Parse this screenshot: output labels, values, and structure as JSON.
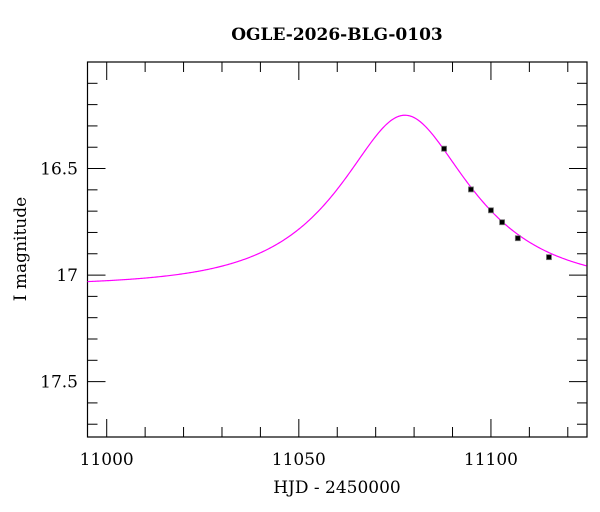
{
  "chart_data": {
    "type": "scatter",
    "title": "OGLE-2026-BLG-0103",
    "xlabel": "HJD - 2450000",
    "ylabel": "I magnitude",
    "xlim": [
      10995,
      11125
    ],
    "ylim": [
      16.0,
      17.76
    ],
    "y_inverted": true,
    "x_ticks": [
      11000,
      11050,
      11100
    ],
    "x_tick_labels": [
      "11000",
      "11050",
      "11100"
    ],
    "y_ticks": [
      16.5,
      17,
      17.5
    ],
    "y_tick_labels": [
      "16.5",
      "17",
      "17.5"
    ],
    "grid": false,
    "series": [
      {
        "kind": "points",
        "color": "#000000",
        "x": [
          11087.8,
          11094.8,
          11100.0,
          11102.9,
          11107.0,
          11115.1
        ],
        "y": [
          16.407,
          16.598,
          16.696,
          16.752,
          16.827,
          16.916
        ],
        "yerr": [
          0.006,
          0.006,
          0.006,
          0.006,
          0.006,
          0.006
        ]
      },
      {
        "kind": "model",
        "model": "point-lens microlensing",
        "color": "#ff00ff",
        "t0": 11077.6,
        "u0": 0.527,
        "tE": 28.5,
        "baseline_mag": 17.05
      }
    ]
  }
}
